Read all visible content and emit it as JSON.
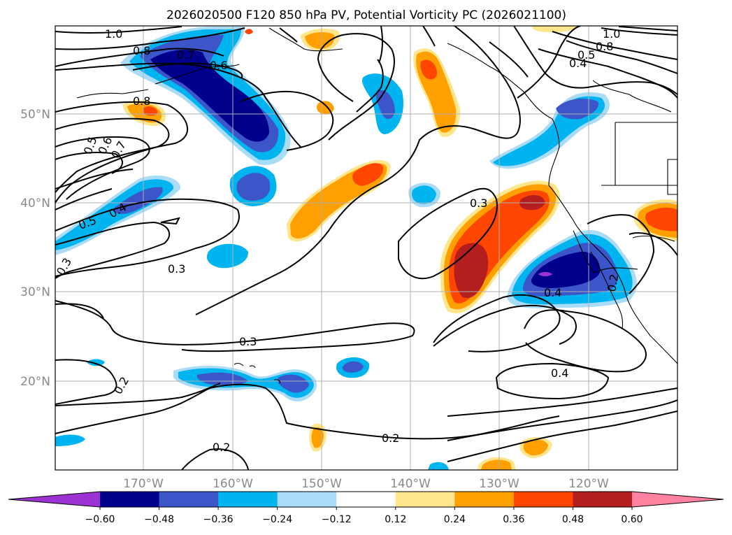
{
  "title": "2026020500 F120 850 hPa PV, Potential Vorticity PC (2026021100)",
  "map": {
    "lat_labels": [
      "50°N",
      "40°N",
      "30°N",
      "20°N"
    ],
    "lon_labels": [
      "170°W",
      "160°W",
      "150°W",
      "140°W",
      "130°W",
      "120°W"
    ],
    "gridlines": true
  },
  "colorbar": {
    "ticks": [
      "−0.60",
      "−0.48",
      "−0.36",
      "−0.24",
      "−0.12",
      "0.12",
      "0.24",
      "0.36",
      "0.48",
      "0.60"
    ],
    "colors": [
      "#9b32d1",
      "#00008c",
      "#3c55c8",
      "#00b4f0",
      "#aadcf8",
      "#ffffff",
      "#ffe68c",
      "#ffa000",
      "#ff4600",
      "#b41e1e",
      "#ff82a0"
    ],
    "extend": "both"
  },
  "contour_labels": [
    "1.0",
    "0.8",
    "0.7",
    "0.6",
    "0.8",
    "0.5",
    "0.6",
    "0.7",
    "0.4",
    "0.5",
    "0.3",
    "0.3",
    "0.3",
    "0.2",
    "0.2",
    "0.3",
    "0.4",
    "0.4",
    "0.2",
    "0.2",
    "1.0",
    "0.8",
    "0.5",
    "0.4"
  ],
  "colors": {
    "contour": "#000000",
    "grid": "#b0b0b0",
    "coast": "#000000"
  }
}
